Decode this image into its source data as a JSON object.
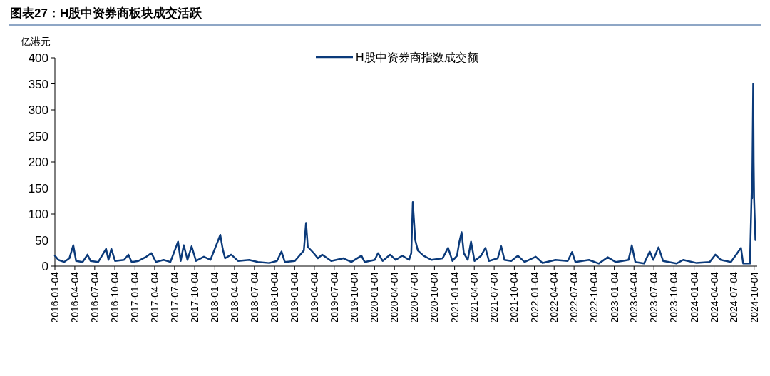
{
  "chart_data": {
    "type": "line",
    "title": "图表27：H股中资券商板块成交活跃",
    "ylabel": "亿港元",
    "legend": "top",
    "grid": false,
    "line_style": "solid",
    "ylim": [
      0,
      400
    ],
    "yticks": [
      0,
      50,
      100,
      150,
      200,
      250,
      300,
      350,
      400
    ],
    "xlim": [
      "2016-01-04",
      "2024-10-18"
    ],
    "xticks": [
      "2016-01-04",
      "2016-04-04",
      "2016-07-04",
      "2016-10-04",
      "2017-01-04",
      "2017-04-04",
      "2017-07-04",
      "2017-10-04",
      "2018-01-04",
      "2018-04-04",
      "2018-07-04",
      "2018-10-04",
      "2019-01-04",
      "2019-04-04",
      "2019-07-04",
      "2019-10-04",
      "2020-01-04",
      "2020-04-04",
      "2020-07-04",
      "2020-10-04",
      "2021-01-04",
      "2021-04-04",
      "2021-07-04",
      "2021-10-04",
      "2022-01-04",
      "2022-04-04",
      "2022-07-04",
      "2022-10-04",
      "2023-01-04",
      "2023-04-04",
      "2023-07-04",
      "2023-10-04",
      "2024-01-04",
      "2024-04-04",
      "2024-07-04",
      "2024-10-04"
    ],
    "x": [
      "2016-01-04",
      "2016-01-20",
      "2016-02-15",
      "2016-03-10",
      "2016-03-28",
      "2016-04-10",
      "2016-05-10",
      "2016-06-01",
      "2016-06-15",
      "2016-07-20",
      "2016-08-25",
      "2016-09-05",
      "2016-09-18",
      "2016-10-05",
      "2016-11-15",
      "2016-12-05",
      "2016-12-20",
      "2017-01-20",
      "2017-02-25",
      "2017-03-20",
      "2017-04-10",
      "2017-05-15",
      "2017-06-15",
      "2017-07-20",
      "2017-08-01",
      "2017-08-15",
      "2017-09-01",
      "2017-09-20",
      "2017-10-10",
      "2017-11-15",
      "2017-12-15",
      "2018-01-18",
      "2018-01-29",
      "2018-02-09",
      "2018-02-20",
      "2018-03-20",
      "2018-04-20",
      "2018-06-10",
      "2018-07-20",
      "2018-09-10",
      "2018-10-15",
      "2018-11-05",
      "2018-11-20",
      "2019-01-05",
      "2019-02-15",
      "2019-02-25",
      "2019-03-05",
      "2019-04-01",
      "2019-04-20",
      "2019-05-10",
      "2019-06-20",
      "2019-08-15",
      "2019-09-20",
      "2019-11-05",
      "2019-11-20",
      "2020-01-05",
      "2020-01-20",
      "2020-02-10",
      "2020-03-15",
      "2020-04-10",
      "2020-05-10",
      "2020-06-10",
      "2020-06-20",
      "2020-06-27",
      "2020-07-08",
      "2020-07-20",
      "2020-08-15",
      "2020-09-20",
      "2020-11-10",
      "2020-12-05",
      "2020-12-25",
      "2021-01-15",
      "2021-01-25",
      "2021-02-05",
      "2021-02-15",
      "2021-03-05",
      "2021-03-20",
      "2021-04-05",
      "2021-05-05",
      "2021-05-25",
      "2021-06-10",
      "2021-07-20",
      "2021-08-05",
      "2021-08-20",
      "2021-09-20",
      "2021-10-20",
      "2021-11-20",
      "2022-01-10",
      "2022-02-10",
      "2022-04-10",
      "2022-06-05",
      "2022-06-25",
      "2022-07-10",
      "2022-09-10",
      "2022-10-25",
      "2022-12-05",
      "2023-01-10",
      "2023-02-10",
      "2023-03-10",
      "2023-03-25",
      "2023-04-10",
      "2023-05-20",
      "2023-06-15",
      "2023-07-01",
      "2023-07-25",
      "2023-08-15",
      "2023-10-15",
      "2023-11-15",
      "2024-01-15",
      "2024-03-15",
      "2024-04-10",
      "2024-05-05",
      "2024-06-20",
      "2024-08-05",
      "2024-08-15",
      "2024-09-15",
      "2024-09-24",
      "2024-09-25",
      "2024-09-30",
      "2024-10-02",
      "2024-10-04",
      "2024-10-10"
    ],
    "series": [
      {
        "name": "H股中资券商指数成交额",
        "color": "#0b3a7a",
        "values": [
          20,
          12,
          8,
          15,
          40,
          10,
          8,
          22,
          10,
          8,
          33,
          12,
          33,
          10,
          12,
          22,
          8,
          10,
          18,
          25,
          8,
          12,
          8,
          47,
          10,
          40,
          12,
          38,
          10,
          18,
          12,
          48,
          60,
          33,
          15,
          22,
          10,
          12,
          8,
          6,
          10,
          28,
          8,
          10,
          30,
          83,
          37,
          25,
          15,
          22,
          10,
          15,
          8,
          20,
          8,
          12,
          25,
          10,
          22,
          12,
          20,
          12,
          25,
          123,
          50,
          30,
          20,
          12,
          15,
          35,
          10,
          20,
          45,
          65,
          25,
          12,
          47,
          10,
          20,
          35,
          10,
          15,
          38,
          12,
          10,
          20,
          8,
          18,
          6,
          12,
          10,
          27,
          8,
          12,
          5,
          17,
          8,
          10,
          12,
          40,
          8,
          5,
          28,
          12,
          36,
          10,
          5,
          12,
          6,
          8,
          22,
          12,
          8,
          35,
          5,
          5,
          164,
          130,
          350,
          200,
          130,
          50
        ]
      }
    ]
  }
}
